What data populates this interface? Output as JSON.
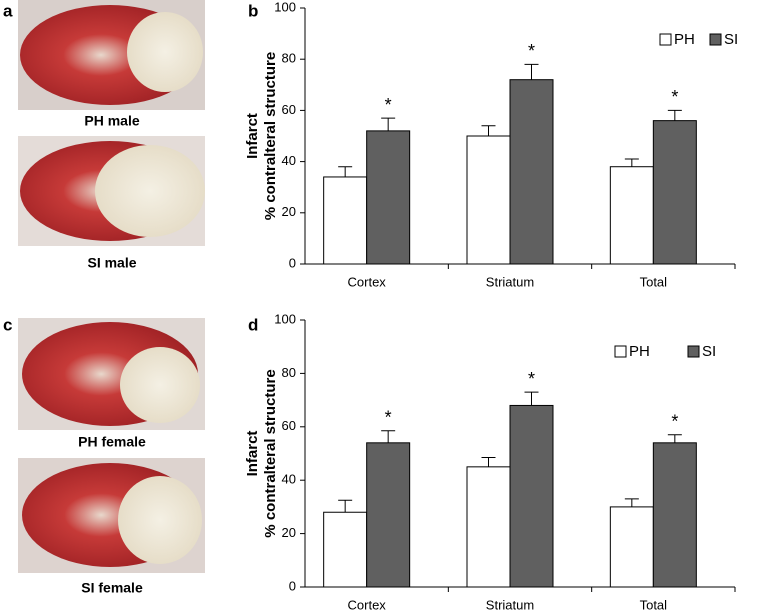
{
  "panel_labels": [
    "a",
    "b",
    "c",
    "d"
  ],
  "photo_captions": [
    "PH male",
    "SI male",
    "PH female",
    "SI female"
  ],
  "chart_data": [
    {
      "type": "bar",
      "ylabel": [
        "Infarct",
        "% contralteral structure"
      ],
      "categories": [
        "Cortex",
        "Striatum",
        "Total"
      ],
      "series": [
        {
          "name": "PH",
          "color": "#ffffff",
          "values": [
            34,
            50,
            38
          ],
          "errors": [
            4,
            4,
            3
          ]
        },
        {
          "name": "SI",
          "color": "#606060",
          "values": [
            52,
            72,
            56
          ],
          "errors": [
            5,
            6,
            4
          ],
          "markers": [
            "*",
            "*",
            "*"
          ]
        }
      ],
      "ylim": [
        0,
        100
      ],
      "yticks": [
        0,
        20,
        40,
        60,
        80,
        100
      ],
      "legend": "top-right"
    },
    {
      "type": "bar",
      "ylabel": [
        "Infarct",
        "% contralteral structure"
      ],
      "categories": [
        "Cortex",
        "Striatum",
        "Total"
      ],
      "series": [
        {
          "name": "PH",
          "color": "#ffffff",
          "values": [
            28,
            45,
            30
          ],
          "errors": [
            4.5,
            3.5,
            3
          ]
        },
        {
          "name": "SI",
          "color": "#606060",
          "values": [
            54,
            68,
            54
          ],
          "errors": [
            4.5,
            5,
            3
          ],
          "markers": [
            "*",
            "*",
            "*"
          ]
        }
      ],
      "ylim": [
        0,
        100
      ],
      "yticks": [
        0,
        20,
        40,
        60,
        80,
        100
      ],
      "legend": "top-right"
    }
  ]
}
